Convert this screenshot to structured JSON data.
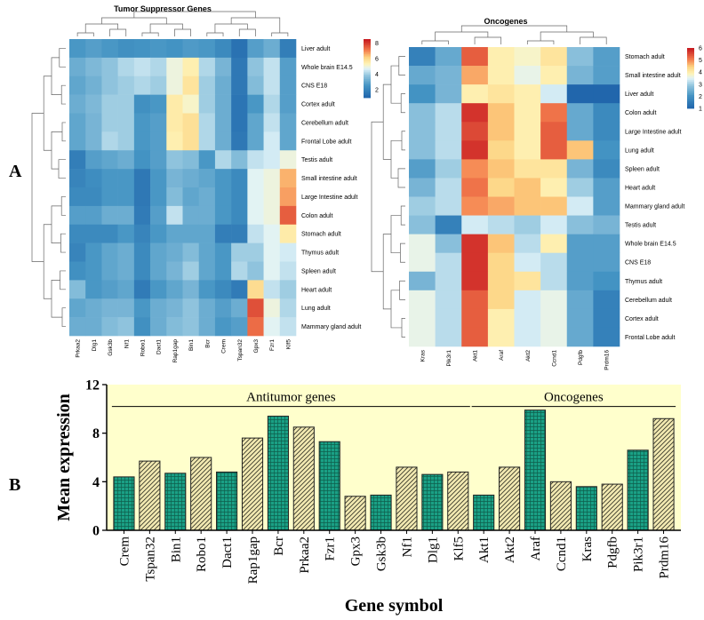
{
  "panels": {
    "a": "A",
    "b": "B"
  },
  "chart_data": [
    {
      "type": "heatmap",
      "title": "Tumor Suppressor Genes",
      "columns": [
        "Prkaa2",
        "Dlg1",
        "Gsk3b",
        "Nf1",
        "Robo1",
        "Dact1",
        "Rap1gap",
        "Bin1",
        "Bcr",
        "Crem",
        "Tspan32",
        "Gpx3",
        "Fzr1",
        "Klf5"
      ],
      "rows": [
        "Liver adult",
        "Whole brain E14.5",
        "CNS E18",
        "Cortex adult",
        "Cerebellum adult",
        "Frontal Lobe adult",
        "Testis adult",
        "Small intestine adult",
        "Large Intestine adult",
        "Colon adult",
        "Stomach adult",
        "Thymus adult",
        "Spleen adult",
        "Heart adult",
        "Lung adult",
        "Mammary gland adult"
      ],
      "values": [
        [
          2.6,
          2.8,
          2.6,
          2.4,
          2.5,
          2.6,
          2.5,
          2.7,
          2.6,
          2.2,
          1.4,
          2.8,
          3.2,
          1.8
        ],
        [
          3.2,
          3.5,
          3.8,
          4.2,
          4.4,
          4.2,
          5.0,
          5.5,
          4.2,
          3.4,
          1.6,
          3.8,
          4.4,
          2.8
        ],
        [
          3.0,
          3.3,
          3.8,
          4.0,
          4.2,
          4.0,
          5.0,
          5.8,
          4.0,
          3.2,
          1.6,
          3.6,
          4.4,
          2.8
        ],
        [
          3.2,
          3.5,
          4.0,
          4.0,
          2.4,
          2.6,
          5.6,
          5.2,
          4.0,
          3.2,
          1.5,
          2.6,
          4.2,
          2.8
        ],
        [
          3.0,
          3.4,
          4.0,
          4.0,
          2.6,
          2.8,
          5.6,
          5.9,
          4.2,
          3.2,
          1.5,
          3.0,
          4.4,
          3.0
        ],
        [
          3.0,
          3.4,
          4.2,
          4.0,
          2.6,
          2.8,
          5.5,
          5.9,
          4.2,
          3.2,
          1.6,
          3.0,
          4.6,
          3.0
        ],
        [
          1.8,
          2.8,
          3.0,
          3.2,
          2.5,
          2.8,
          3.8,
          3.6,
          2.6,
          4.2,
          3.6,
          4.4,
          4.6,
          5.0
        ],
        [
          2.0,
          2.3,
          2.6,
          2.6,
          1.6,
          2.6,
          3.4,
          3.2,
          3.0,
          2.6,
          2.2,
          4.8,
          5.0,
          6.6
        ],
        [
          2.2,
          2.2,
          2.6,
          2.6,
          1.6,
          2.6,
          3.6,
          3.0,
          3.2,
          2.6,
          2.2,
          4.8,
          5.0,
          6.8
        ],
        [
          2.8,
          2.8,
          3.2,
          3.2,
          1.7,
          2.8,
          4.4,
          3.2,
          3.2,
          2.6,
          2.2,
          4.8,
          5.0,
          7.6
        ],
        [
          2.2,
          2.2,
          2.2,
          2.6,
          2.0,
          2.6,
          3.0,
          3.0,
          3.0,
          1.8,
          1.8,
          4.4,
          4.8,
          5.6
        ],
        [
          2.0,
          2.6,
          3.0,
          3.2,
          2.2,
          3.0,
          3.2,
          3.6,
          3.0,
          2.6,
          4.0,
          4.0,
          4.8,
          4.6
        ],
        [
          2.4,
          2.6,
          3.0,
          3.2,
          2.2,
          3.0,
          3.4,
          4.0,
          3.0,
          2.6,
          4.2,
          3.8,
          4.8,
          4.4
        ],
        [
          3.6,
          2.6,
          2.8,
          3.0,
          1.7,
          2.6,
          3.0,
          3.4,
          2.6,
          2.2,
          1.7,
          6.0,
          4.4,
          4.0
        ],
        [
          3.0,
          3.2,
          3.4,
          3.4,
          2.6,
          3.2,
          3.4,
          3.8,
          3.2,
          2.8,
          3.2,
          7.8,
          5.0,
          4.2
        ],
        [
          3.2,
          3.2,
          3.6,
          3.8,
          2.4,
          3.2,
          3.6,
          3.8,
          3.2,
          2.6,
          2.8,
          7.4,
          4.8,
          4.4
        ]
      ],
      "scale_ticks": [
        2,
        4,
        6,
        8
      ],
      "range": [
        1,
        8.5
      ]
    },
    {
      "type": "heatmap",
      "title": "Oncogenes",
      "columns": [
        "Kras",
        "Pik3r1",
        "Akt1",
        "Araf",
        "Akt2",
        "Ccnd1",
        "Pdgfb",
        "Prdm16"
      ],
      "rows": [
        "Stomach adult",
        "Small intestine adult",
        "Liver adult",
        "Colon adult",
        "Large Intestine adult",
        "Lung adult",
        "Spleen adult",
        "Heart adult",
        "Mammary gland adult",
        "Testis adult",
        "Whole brain E14.5",
        "CNS E18",
        "Thymus adult",
        "Cerebellum adult",
        "Cortex adult",
        "Frontal Lobe adult"
      ],
      "values": [
        [
          1.6,
          2.4,
          5.4,
          4.0,
          3.8,
          4.2,
          2.8,
          2.2
        ],
        [
          2.4,
          2.6,
          4.8,
          4.0,
          3.6,
          4.0,
          2.6,
          2.2
        ],
        [
          2.0,
          2.6,
          4.0,
          4.2,
          4.0,
          3.4,
          1.0,
          1.0
        ],
        [
          2.8,
          3.2,
          5.8,
          4.6,
          4.0,
          5.2,
          2.4,
          1.8
        ],
        [
          2.8,
          3.2,
          5.6,
          4.6,
          4.0,
          5.4,
          2.4,
          1.8
        ],
        [
          2.8,
          3.2,
          5.8,
          4.4,
          4.0,
          5.4,
          4.6,
          2.0
        ],
        [
          2.2,
          3.0,
          5.0,
          4.6,
          4.2,
          4.2,
          2.6,
          1.8
        ],
        [
          2.6,
          3.2,
          5.2,
          4.4,
          4.6,
          4.0,
          3.0,
          2.2
        ],
        [
          3.0,
          3.2,
          5.0,
          4.8,
          4.6,
          4.6,
          3.4,
          2.2
        ],
        [
          2.8,
          1.6,
          3.4,
          3.2,
          3.0,
          3.4,
          2.8,
          2.6
        ],
        [
          3.6,
          2.8,
          5.8,
          4.6,
          3.2,
          4.0,
          2.2,
          2.2
        ],
        [
          3.6,
          3.2,
          5.8,
          4.4,
          3.4,
          3.2,
          2.2,
          2.2
        ],
        [
          2.6,
          3.2,
          5.8,
          4.4,
          4.2,
          3.2,
          2.2,
          2.0
        ],
        [
          3.6,
          3.2,
          5.4,
          4.4,
          3.4,
          3.6,
          2.4,
          1.6
        ],
        [
          3.6,
          3.2,
          5.4,
          4.0,
          3.4,
          3.6,
          2.4,
          1.6
        ],
        [
          3.6,
          3.2,
          5.4,
          4.0,
          3.4,
          3.6,
          2.4,
          1.6
        ]
      ],
      "scale_ticks": [
        1,
        2,
        3,
        4,
        5,
        6
      ],
      "range": [
        1,
        6
      ]
    },
    {
      "type": "bar",
      "categories": [
        "Crem",
        "Tspan32",
        "Bin1",
        "Robo1",
        "Dact1",
        "Rap1gap",
        "Bcr",
        "Prkaa2",
        "Fzr1",
        "Gpx3",
        "Gsk3b",
        "Nf1",
        "Dlg1",
        "Klf5",
        "Akt1",
        "Akt2",
        "Araf",
        "Ccnd1",
        "Kras",
        "Pdgfb",
        "Pik3r1",
        "Prdm16"
      ],
      "values": [
        4.4,
        5.7,
        4.7,
        6.0,
        4.8,
        7.6,
        9.4,
        8.5,
        7.3,
        2.8,
        2.9,
        5.2,
        4.6,
        4.8,
        2.9,
        5.2,
        9.9,
        4.0,
        3.6,
        3.8,
        6.6,
        9.2
      ],
      "patterns": [
        "grid",
        "hatch",
        "grid",
        "hatch",
        "grid",
        "hatch",
        "grid",
        "hatch",
        "grid",
        "hatch",
        "grid",
        "hatch",
        "grid",
        "hatch",
        "grid",
        "hatch",
        "grid",
        "hatch",
        "grid",
        "hatch",
        "grid",
        "hatch"
      ],
      "xlabel": "Gene symbol",
      "ylabel": "Mean expression",
      "ylim": [
        0,
        12
      ],
      "yticks": [
        0,
        4,
        8,
        12
      ],
      "ytick_labels": [
        "0",
        "4",
        "8",
        "12"
      ],
      "groups": [
        {
          "label": "Antitumor genes",
          "from": "Crem",
          "to": "Klf5"
        },
        {
          "label": "Oncogenes",
          "from": "Akt1",
          "to": "Prdm16"
        }
      ],
      "background": "#ffffcc"
    }
  ]
}
